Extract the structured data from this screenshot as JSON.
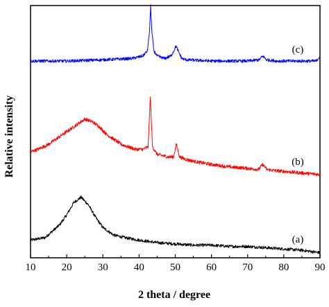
{
  "chart_data": {
    "type": "line",
    "title": "",
    "xlabel": "2 theta / degree",
    "ylabel": "Relative intensity",
    "xlim": [
      10,
      90
    ],
    "x_ticks": [
      10,
      20,
      30,
      40,
      50,
      60,
      70,
      80,
      90
    ],
    "y_ticks_shown": false,
    "grid": false,
    "legend": "none",
    "series": [
      {
        "label": "(a)",
        "color": "#000000",
        "noise": 0.006,
        "x": [
          10,
          14,
          18,
          20,
          22,
          24,
          26,
          28,
          30,
          33,
          36,
          40,
          45,
          50,
          55,
          60,
          65,
          70,
          75,
          80,
          85,
          90
        ],
        "y": [
          0.07,
          0.08,
          0.13,
          0.17,
          0.22,
          0.24,
          0.21,
          0.16,
          0.12,
          0.09,
          0.08,
          0.07,
          0.06,
          0.055,
          0.05,
          0.05,
          0.045,
          0.045,
          0.04,
          0.035,
          0.03,
          0.02
        ]
      },
      {
        "label": "(b)",
        "color": "#ff0000",
        "noise": 0.007,
        "x": [
          10,
          12,
          15,
          18,
          20,
          22,
          24,
          25,
          27,
          29,
          31,
          33,
          35,
          37,
          39,
          41,
          42.5,
          43.1,
          43.7,
          45,
          48,
          49.5,
          50.3,
          51.2,
          53,
          56,
          60,
          65,
          70,
          73,
          74.2,
          75.3,
          78,
          82,
          86,
          90
        ],
        "y": [
          0.42,
          0.43,
          0.45,
          0.48,
          0.5,
          0.52,
          0.54,
          0.55,
          0.54,
          0.52,
          0.49,
          0.47,
          0.45,
          0.44,
          0.43,
          0.43,
          0.44,
          0.64,
          0.44,
          0.41,
          0.4,
          0.4,
          0.45,
          0.4,
          0.39,
          0.38,
          0.37,
          0.36,
          0.355,
          0.35,
          0.37,
          0.35,
          0.345,
          0.34,
          0.335,
          0.33
        ]
      },
      {
        "label": "(c)",
        "color": "#0000ff",
        "noise": 0.006,
        "x": [
          10,
          20,
          30,
          38,
          41,
          42.3,
          42.9,
          43.2,
          43.5,
          44.1,
          45,
          47,
          48.8,
          49.6,
          50.2,
          50.8,
          51.8,
          53,
          60,
          70,
          73.2,
          74.2,
          75.2,
          78,
          85,
          89,
          90
        ],
        "y": [
          0.78,
          0.78,
          0.785,
          0.79,
          0.8,
          0.82,
          0.9,
          1.0,
          0.9,
          0.82,
          0.8,
          0.79,
          0.8,
          0.82,
          0.84,
          0.82,
          0.79,
          0.785,
          0.78,
          0.78,
          0.785,
          0.8,
          0.785,
          0.78,
          0.78,
          0.78,
          0.8
        ]
      }
    ]
  }
}
